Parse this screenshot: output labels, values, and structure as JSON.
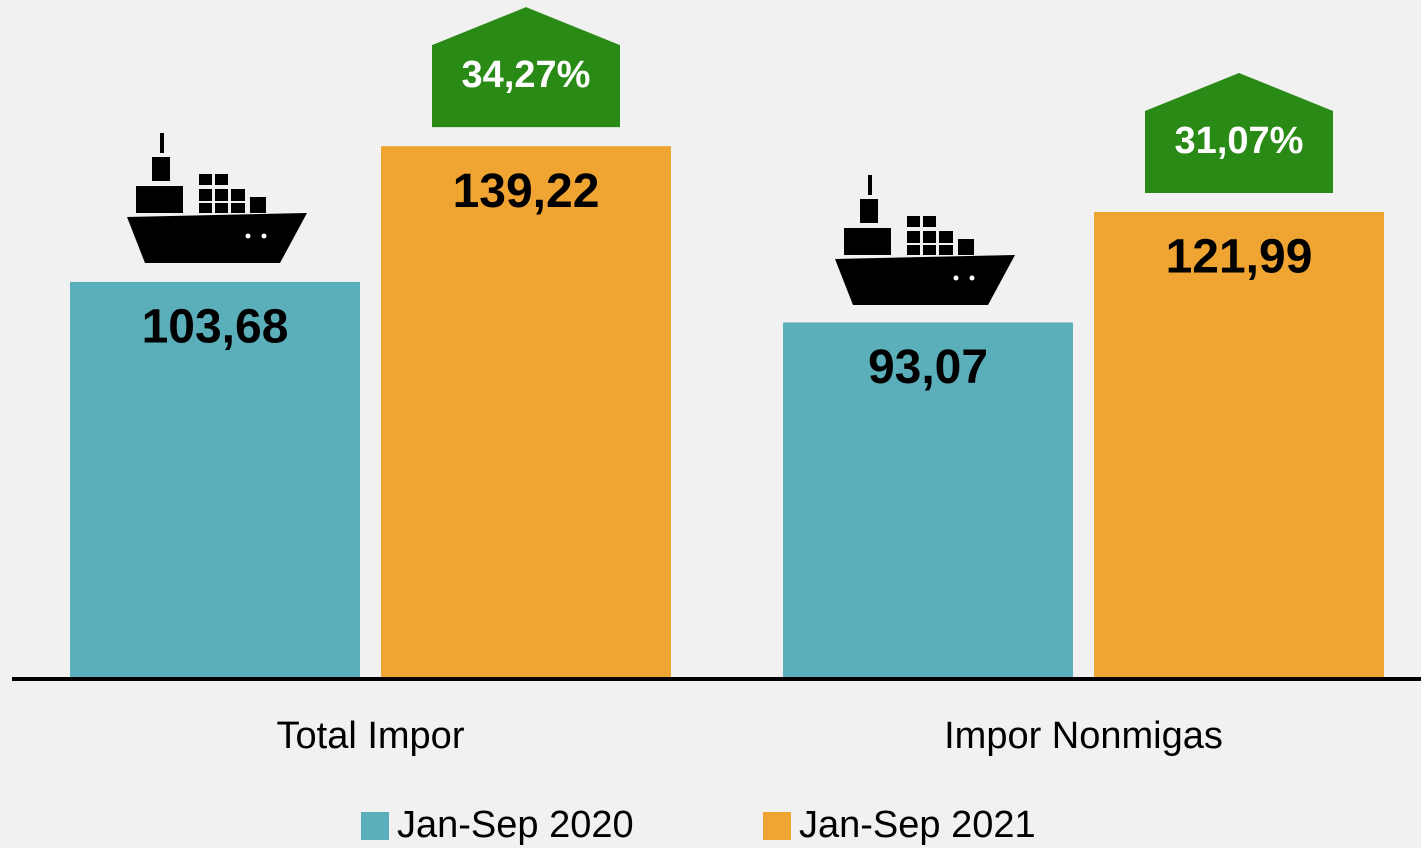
{
  "chart_data": {
    "type": "bar",
    "categories": [
      "Total Impor",
      "Impor Nonmigas"
    ],
    "series": [
      {
        "name": "Jan-Sep 2020",
        "color": "#5aafba",
        "values": [
          103.68,
          93.07
        ],
        "value_labels": [
          "103,68",
          "93,07"
        ]
      },
      {
        "name": "Jan-Sep 2021",
        "color": "#f0a431",
        "values": [
          139.22,
          121.99
        ],
        "value_labels": [
          "139,22",
          "121,99"
        ]
      }
    ],
    "annotations": [
      {
        "value": 34.27,
        "label": "34,27%",
        "color": "#2a8a16"
      },
      {
        "value": 31.07,
        "label": "31,07%",
        "color": "#2a8a16"
      }
    ]
  }
}
